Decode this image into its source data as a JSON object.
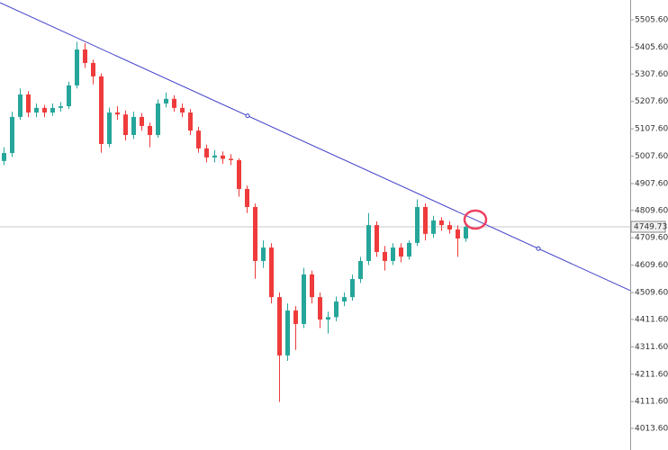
{
  "chart_data": {
    "type": "candlestick",
    "ylim": [
      3934.8,
      5577.9
    ],
    "yticks": [
      {
        "value": 5505.6,
        "label": "5505.60"
      },
      {
        "value": 5405.6,
        "label": "5405.60"
      },
      {
        "value": 5307.6,
        "label": "5307.60"
      },
      {
        "value": 5207.6,
        "label": "5207.60"
      },
      {
        "value": 5107.6,
        "label": "5107.60"
      },
      {
        "value": 5007.6,
        "label": "5007.60"
      },
      {
        "value": 4907.6,
        "label": "4907.60"
      },
      {
        "value": 4809.6,
        "label": "4809.60"
      },
      {
        "value": 4709.6,
        "label": "4709.60"
      },
      {
        "value": 4609.6,
        "label": "4609.60"
      },
      {
        "value": 4509.6,
        "label": "4509.60"
      },
      {
        "value": 4411.6,
        "label": "4411.60"
      },
      {
        "value": 4311.6,
        "label": "4311.60"
      },
      {
        "value": 4211.6,
        "label": "4211.60"
      },
      {
        "value": 4111.6,
        "label": "4111.60"
      },
      {
        "value": 4013.6,
        "label": "4013.60"
      }
    ],
    "up_color": "#26a69a",
    "down_color": "#ef3b3b",
    "candles": {
      "open": [
        4990,
        5019,
        5151,
        5233,
        5167,
        5184,
        5167,
        5184,
        5190,
        5266,
        5397,
        5348,
        5299,
        5052,
        5167,
        5160,
        5085,
        5151,
        5118,
        5085,
        5200,
        5217,
        5184,
        5167,
        5101,
        5036,
        5003,
        5010,
        4998,
        4993,
        4888,
        4822,
        4625,
        4674,
        4493,
        4280,
        4444,
        4395,
        4576,
        4493,
        4411,
        4420,
        4477,
        4493,
        4559,
        4625,
        4756,
        4658,
        4625,
        4674,
        4641,
        4691,
        4822,
        4724,
        4773,
        4756,
        4740,
        4707
      ],
      "high": [
        5040,
        5170,
        5255,
        5245,
        5200,
        5195,
        5200,
        5205,
        5280,
        5425,
        5420,
        5360,
        5310,
        5185,
        5190,
        5175,
        5170,
        5165,
        5130,
        5215,
        5240,
        5230,
        5200,
        5180,
        5115,
        5050,
        5030,
        5025,
        5015,
        5000,
        4900,
        4835,
        4700,
        4690,
        4510,
        4470,
        4460,
        4600,
        4590,
        4510,
        4440,
        4495,
        4510,
        4575,
        4640,
        4800,
        4770,
        4680,
        4690,
        4690,
        4700,
        4850,
        4835,
        4790,
        4785,
        4770,
        4755,
        4760
      ],
      "low": [
        4975,
        5005,
        5140,
        5150,
        5150,
        5150,
        5155,
        5170,
        5180,
        5255,
        5330,
        5270,
        5020,
        5040,
        5140,
        5065,
        5070,
        5100,
        5040,
        5075,
        5185,
        5170,
        5150,
        5085,
        5020,
        4985,
        4985,
        4980,
        4975,
        4860,
        4800,
        4560,
        4600,
        4470,
        4110,
        4260,
        4300,
        4380,
        4470,
        4380,
        4360,
        4405,
        4460,
        4480,
        4545,
        4610,
        4640,
        4590,
        4610,
        4620,
        4630,
        4680,
        4700,
        4710,
        4735,
        4725,
        4640,
        4695
      ],
      "close": [
        5019,
        5151,
        5233,
        5167,
        5184,
        5167,
        5184,
        5190,
        5266,
        5397,
        5348,
        5299,
        5052,
        5167,
        5160,
        5085,
        5151,
        5118,
        5085,
        5200,
        5217,
        5184,
        5167,
        5101,
        5036,
        5003,
        5010,
        4998,
        4993,
        4888,
        4822,
        4625,
        4674,
        4493,
        4280,
        4444,
        4395,
        4576,
        4493,
        4411,
        4420,
        4477,
        4493,
        4559,
        4625,
        4756,
        4658,
        4625,
        4674,
        4641,
        4691,
        4822,
        4724,
        4773,
        4756,
        4740,
        4707,
        4749.73
      ]
    },
    "trendline": {
      "color": "#3f3fc8",
      "values": [
        5568,
        4517
      ]
    },
    "current_price": {
      "value": 4749.73,
      "label": "4749.73"
    }
  }
}
